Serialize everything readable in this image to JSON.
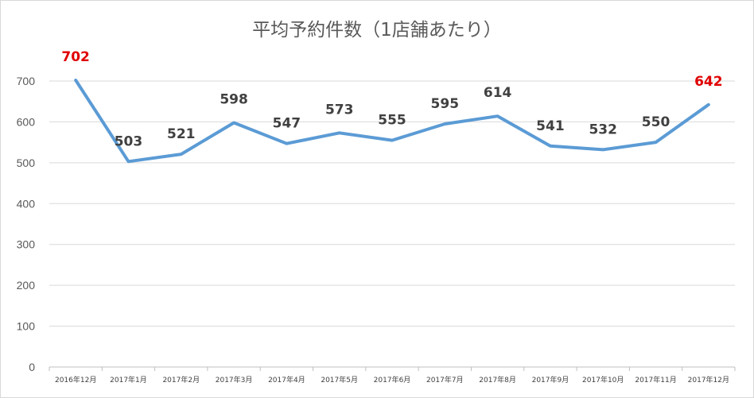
{
  "chart_data": {
    "type": "line",
    "title": "平均予約件数（1店舗あたり）",
    "categories": [
      "2016年12月",
      "2017年1月",
      "2017年2月",
      "2017年3月",
      "2017年4月",
      "2017年5月",
      "2017年6月",
      "2017年7月",
      "2017年8月",
      "2017年9月",
      "2017年10月",
      "2017年11月",
      "2017年12月"
    ],
    "series": [
      {
        "values": [
          702,
          503,
          521,
          598,
          547,
          573,
          555,
          595,
          614,
          541,
          532,
          550,
          642
        ]
      }
    ],
    "data_labels": [
      "702",
      "503",
      "521",
      "598",
      "547",
      "573",
      "555",
      "595",
      "614",
      "541",
      "532",
      "550",
      "642"
    ],
    "highlighted_labels": [
      0,
      12
    ],
    "ylim": [
      0,
      700
    ],
    "yticks": [
      "0",
      "100",
      "200",
      "300",
      "400",
      "500",
      "600",
      "700"
    ],
    "grid": true,
    "legend": "none",
    "colors": {
      "line": "#5b9bd5",
      "highlight_label": "#e00000",
      "label": "#404040",
      "grid": "#d9d9d9"
    }
  }
}
